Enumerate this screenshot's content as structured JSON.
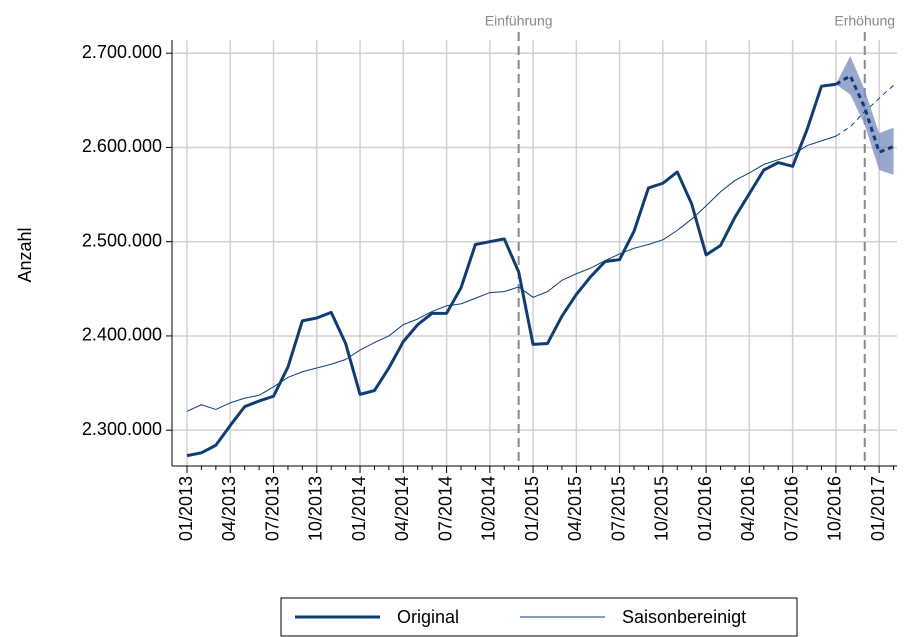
{
  "chart_data": {
    "type": "line",
    "ylabel": "Anzahl",
    "categories": [
      "01/2013",
      null,
      null,
      "04/2013",
      null,
      null,
      "07/2013",
      null,
      null,
      "10/2013",
      null,
      null,
      "01/2014",
      null,
      null,
      "04/2014",
      null,
      null,
      "07/2014",
      null,
      null,
      "10/2014",
      null,
      null,
      "01/2015",
      null,
      null,
      "04/2015",
      null,
      null,
      "07/2015",
      null,
      null,
      "10/2015",
      null,
      null,
      "01/2016",
      null,
      null,
      "04/2016",
      null,
      null,
      "07/2016",
      null,
      null,
      "10/2016",
      null,
      null,
      "01/2017",
      null
    ],
    "series": [
      {
        "name": "Original",
        "color": "#0f3d73",
        "width": 3,
        "values": [
          2273000,
          2276000,
          2284000,
          2305000,
          2325000,
          2331000,
          2336000,
          2367000,
          2416000,
          2419000,
          2425000,
          2392000,
          2338000,
          2342000,
          2366000,
          2394000,
          2412000,
          2424000,
          2424000,
          2451000,
          2497000,
          2500000,
          2503000,
          2468000,
          2391000,
          2392000,
          2421000,
          2444000,
          2463000,
          2479000,
          2481000,
          2511000,
          2557000,
          2562000,
          2574000,
          2540000,
          2486000,
          2496000,
          2526000,
          2551000,
          2576000,
          2584000,
          2580000,
          2619000,
          2665000,
          2667000,
          null,
          null,
          null,
          null
        ]
      },
      {
        "name": "Saisonbereinigt",
        "color": "#0f3d73",
        "width": 1,
        "values": [
          2320000,
          2327000,
          2322000,
          2329000,
          2334000,
          2337000,
          2346000,
          2356000,
          2362000,
          2366000,
          2370000,
          2375000,
          2385000,
          2393000,
          2400000,
          2412000,
          2418000,
          2426000,
          2432000,
          2434000,
          2440000,
          2446000,
          2447000,
          2452000,
          2441000,
          2447000,
          2459000,
          2466000,
          2472000,
          2480000,
          2487000,
          2493000,
          2497000,
          2502000,
          2512000,
          2524000,
          2538000,
          2553000,
          2565000,
          2573000,
          2582000,
          2587000,
          2592000,
          2602000,
          2607000,
          2612000,
          null,
          null,
          null,
          null
        ]
      }
    ],
    "forecast": [
      {
        "color": "#0f3d73",
        "width": 3,
        "values": [
          null,
          null,
          null,
          null,
          null,
          null,
          null,
          null,
          null,
          null,
          null,
          null,
          null,
          null,
          null,
          null,
          null,
          null,
          null,
          null,
          null,
          null,
          null,
          null,
          null,
          null,
          null,
          null,
          null,
          null,
          null,
          null,
          null,
          null,
          null,
          null,
          null,
          null,
          null,
          null,
          null,
          null,
          null,
          null,
          null,
          2667000,
          2676000,
          2642000,
          2595000,
          2601000
        ]
      },
      {
        "color": "#0f3d73",
        "width": 1,
        "values": [
          null,
          null,
          null,
          null,
          null,
          null,
          null,
          null,
          null,
          null,
          null,
          null,
          null,
          null,
          null,
          null,
          null,
          null,
          null,
          null,
          null,
          null,
          null,
          null,
          null,
          null,
          null,
          null,
          null,
          null,
          null,
          null,
          null,
          null,
          null,
          null,
          null,
          null,
          null,
          null,
          null,
          null,
          null,
          null,
          null,
          2612000,
          2622000,
          2638000,
          2652000,
          2666000
        ]
      }
    ],
    "forecast_interval": {
      "color": "#8090c0",
      "upper": [
        null,
        null,
        null,
        null,
        null,
        null,
        null,
        null,
        null,
        null,
        null,
        null,
        null,
        null,
        null,
        null,
        null,
        null,
        null,
        null,
        null,
        null,
        null,
        null,
        null,
        null,
        null,
        null,
        null,
        null,
        null,
        null,
        null,
        null,
        null,
        null,
        null,
        null,
        null,
        null,
        null,
        null,
        null,
        null,
        null,
        2667000,
        2697000,
        2661000,
        2615000,
        2621000
      ],
      "lower": [
        null,
        null,
        null,
        null,
        null,
        null,
        null,
        null,
        null,
        null,
        null,
        null,
        null,
        null,
        null,
        null,
        null,
        null,
        null,
        null,
        null,
        null,
        null,
        null,
        null,
        null,
        null,
        null,
        null,
        null,
        null,
        null,
        null,
        null,
        null,
        null,
        null,
        null,
        null,
        null,
        null,
        null,
        null,
        null,
        null,
        2667000,
        2656000,
        2624000,
        2576000,
        2571000
      ]
    },
    "annotations": [
      {
        "label": "Einführung",
        "x": 23
      },
      {
        "label": "Erhöhung",
        "x": 47
      }
    ],
    "ylim": [
      2262000,
      2714000
    ],
    "yticks": [
      {
        "value": 2300000,
        "label": "2.300.000"
      },
      {
        "value": 2400000,
        "label": "2.400.000"
      },
      {
        "value": 2500000,
        "label": "2.500.000"
      },
      {
        "value": 2600000,
        "label": "2.600.000"
      },
      {
        "value": 2700000,
        "label": "2.700.000"
      }
    ],
    "grid": true,
    "legend": "bottom"
  }
}
